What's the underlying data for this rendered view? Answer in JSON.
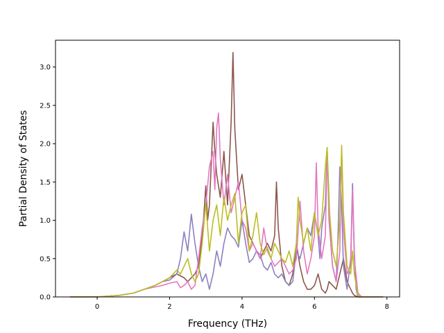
{
  "chart_data": {
    "type": "line",
    "title": "",
    "xlabel": "Frequency (THz)",
    "ylabel": "Partial Density of States",
    "xlim": [
      -1.15,
      8.35
    ],
    "ylim": [
      0,
      3.35
    ],
    "xticks": [
      0,
      2,
      4,
      6,
      8
    ],
    "xtick_labels": [
      "0",
      "2",
      "4",
      "6",
      "8"
    ],
    "yticks": [
      0.0,
      0.5,
      1.0,
      1.5,
      2.0,
      2.5,
      3.0
    ],
    "ytick_labels": [
      "0.0",
      "0.5",
      "1.0",
      "1.5",
      "2.0",
      "2.5",
      "3.0"
    ],
    "grid": false,
    "legend": "none",
    "series": [
      {
        "color": "#8c564b",
        "x": [
          -0.75,
          0.0,
          0.6,
          1.0,
          1.3,
          1.6,
          1.8,
          2.0,
          2.2,
          2.4,
          2.5,
          2.6,
          2.7,
          2.8,
          2.9,
          2.95,
          3.0,
          3.05,
          3.1,
          3.2,
          3.25,
          3.3,
          3.4,
          3.5,
          3.6,
          3.7,
          3.75,
          3.8,
          3.9,
          4.0,
          4.1,
          4.2,
          4.3,
          4.4,
          4.5,
          4.6,
          4.7,
          4.8,
          4.9,
          4.95,
          5.0,
          5.1,
          5.2,
          5.3,
          5.4,
          5.5,
          5.6,
          5.7,
          5.8,
          5.9,
          6.0,
          6.1,
          6.15,
          6.2,
          6.3,
          6.35,
          6.4,
          6.5,
          6.6,
          6.7,
          6.8,
          6.9,
          7.0,
          7.05,
          7.1,
          7.2,
          7.3,
          7.9
        ],
        "y": [
          0.0,
          0.0,
          0.02,
          0.05,
          0.1,
          0.15,
          0.2,
          0.25,
          0.3,
          0.25,
          0.2,
          0.25,
          0.3,
          0.4,
          0.8,
          1.1,
          1.45,
          1.0,
          1.2,
          2.28,
          1.9,
          1.6,
          1.3,
          1.9,
          1.2,
          2.3,
          3.19,
          2.2,
          1.4,
          1.6,
          1.2,
          0.8,
          0.7,
          0.6,
          0.5,
          0.6,
          0.7,
          0.6,
          0.8,
          1.5,
          0.9,
          0.4,
          0.2,
          0.15,
          0.3,
          0.7,
          0.4,
          0.2,
          0.1,
          0.1,
          0.15,
          0.3,
          0.2,
          0.1,
          0.05,
          0.1,
          0.2,
          0.15,
          0.1,
          0.3,
          0.5,
          0.2,
          0.1,
          0.05,
          0.02,
          0.0,
          0.0,
          0.0
        ]
      },
      {
        "color": "#8c7fbf",
        "x": [
          -0.75,
          0.0,
          0.6,
          1.0,
          1.3,
          1.6,
          1.8,
          2.0,
          2.2,
          2.3,
          2.4,
          2.5,
          2.6,
          2.7,
          2.8,
          2.9,
          3.0,
          3.1,
          3.2,
          3.3,
          3.4,
          3.5,
          3.6,
          3.7,
          3.8,
          3.9,
          4.0,
          4.1,
          4.2,
          4.3,
          4.4,
          4.5,
          4.6,
          4.7,
          4.8,
          4.9,
          5.0,
          5.1,
          5.2,
          5.3,
          5.4,
          5.5,
          5.6,
          5.7,
          5.8,
          5.9,
          6.0,
          6.1,
          6.15,
          6.2,
          6.3,
          6.35,
          6.4,
          6.45,
          6.5,
          6.6,
          6.65,
          6.7,
          6.75,
          6.8,
          6.9,
          7.0,
          7.05,
          7.1,
          7.15,
          7.2,
          7.3,
          7.9
        ],
        "y": [
          0.0,
          0.0,
          0.02,
          0.05,
          0.1,
          0.15,
          0.2,
          0.22,
          0.3,
          0.5,
          0.85,
          0.6,
          1.08,
          0.7,
          0.4,
          0.2,
          0.3,
          0.1,
          0.3,
          0.6,
          0.4,
          0.7,
          0.9,
          0.8,
          0.75,
          0.65,
          1.0,
          0.7,
          0.45,
          0.5,
          0.6,
          0.55,
          0.4,
          0.35,
          0.45,
          0.3,
          0.25,
          0.3,
          0.2,
          0.15,
          0.2,
          0.6,
          0.5,
          0.7,
          0.9,
          0.8,
          1.1,
          0.8,
          0.5,
          0.9,
          1.2,
          1.95,
          1.3,
          0.7,
          0.4,
          0.2,
          0.8,
          1.7,
          1.2,
          0.4,
          0.1,
          0.5,
          1.48,
          0.6,
          0.1,
          0.0,
          0.0,
          0.0
        ]
      },
      {
        "color": "#e377c2",
        "x": [
          -0.75,
          0.0,
          0.6,
          1.0,
          1.3,
          1.6,
          1.8,
          2.0,
          2.2,
          2.3,
          2.4,
          2.5,
          2.6,
          2.7,
          2.8,
          2.9,
          3.0,
          3.1,
          3.2,
          3.25,
          3.3,
          3.35,
          3.4,
          3.5,
          3.6,
          3.7,
          3.8,
          3.9,
          4.0,
          4.1,
          4.2,
          4.3,
          4.4,
          4.5,
          4.6,
          4.7,
          4.8,
          4.9,
          5.0,
          5.1,
          5.2,
          5.3,
          5.4,
          5.5,
          5.6,
          5.7,
          5.8,
          5.9,
          6.0,
          6.05,
          6.1,
          6.2,
          6.3,
          6.35,
          6.4,
          6.5,
          6.6,
          6.7,
          6.75,
          6.8,
          6.9,
          7.0,
          7.05,
          7.1,
          7.2,
          7.3,
          7.9
        ],
        "y": [
          0.0,
          0.0,
          0.02,
          0.05,
          0.1,
          0.13,
          0.15,
          0.18,
          0.2,
          0.12,
          0.15,
          0.2,
          0.1,
          0.15,
          0.5,
          0.9,
          1.2,
          1.7,
          1.9,
          1.4,
          2.2,
          2.4,
          1.8,
          1.2,
          1.6,
          1.1,
          1.3,
          1.5,
          1.0,
          0.9,
          0.6,
          0.7,
          0.6,
          0.5,
          0.9,
          0.6,
          0.5,
          0.4,
          0.45,
          0.5,
          0.4,
          0.3,
          0.35,
          0.5,
          1.25,
          0.6,
          0.3,
          0.5,
          0.8,
          1.75,
          0.9,
          0.5,
          0.8,
          1.9,
          1.0,
          0.4,
          0.2,
          0.6,
          1.95,
          0.9,
          0.3,
          0.4,
          1.4,
          0.5,
          0.05,
          0.0,
          0.0
        ]
      },
      {
        "color": "#bcbd22",
        "x": [
          -0.75,
          0.0,
          0.6,
          1.0,
          1.3,
          1.6,
          1.8,
          2.0,
          2.2,
          2.3,
          2.4,
          2.5,
          2.6,
          2.7,
          2.8,
          2.9,
          3.0,
          3.1,
          3.2,
          3.3,
          3.4,
          3.5,
          3.6,
          3.7,
          3.8,
          3.9,
          4.0,
          4.1,
          4.2,
          4.3,
          4.4,
          4.5,
          4.6,
          4.7,
          4.8,
          4.9,
          5.0,
          5.1,
          5.2,
          5.3,
          5.4,
          5.5,
          5.55,
          5.6,
          5.7,
          5.8,
          5.9,
          6.0,
          6.1,
          6.2,
          6.3,
          6.35,
          6.4,
          6.5,
          6.6,
          6.7,
          6.75,
          6.8,
          6.9,
          7.0,
          7.05,
          7.1,
          7.2,
          7.3,
          7.9
        ],
        "y": [
          0.0,
          0.0,
          0.02,
          0.05,
          0.1,
          0.15,
          0.2,
          0.25,
          0.35,
          0.3,
          0.4,
          0.5,
          0.3,
          0.2,
          0.3,
          0.7,
          1.22,
          0.6,
          1.0,
          1.2,
          0.8,
          1.3,
          1.0,
          1.2,
          1.35,
          0.7,
          1.1,
          1.2,
          0.6,
          0.8,
          1.1,
          0.7,
          0.55,
          0.65,
          0.5,
          0.7,
          0.6,
          0.5,
          0.45,
          0.6,
          0.4,
          0.7,
          1.3,
          1.0,
          0.7,
          0.9,
          0.6,
          1.1,
          0.8,
          1.0,
          1.7,
          1.95,
          1.2,
          0.6,
          0.4,
          1.0,
          1.98,
          1.1,
          0.4,
          0.3,
          0.6,
          0.3,
          0.02,
          0.0,
          0.0
        ]
      }
    ]
  }
}
